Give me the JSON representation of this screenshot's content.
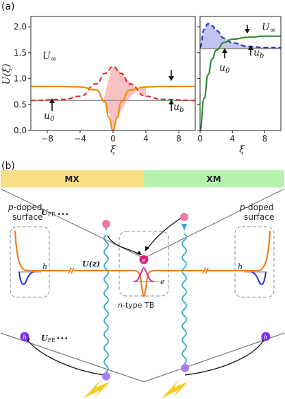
{
  "panels": {
    "a": "(a)",
    "b": "(b)"
  },
  "chart_data": [
    {
      "type": "line",
      "ylabel": "U(ξ)",
      "xlabel": "ξ",
      "xlim": [
        -10,
        10
      ],
      "ylim": [
        0,
        2.2
      ],
      "x_ticks": [
        "-8",
        "-4",
        "0",
        "4",
        "8"
      ],
      "y_ticks": [
        "0.0",
        "0.5",
        "1.0",
        "1.5",
        "2.0"
      ],
      "annotations": [
        "U∞",
        "u0",
        "ub"
      ],
      "series": [
        {
          "color": "#f08c00",
          "style": "solid",
          "x": [
            -10,
            -6,
            -4,
            -2,
            -1,
            -0.5,
            0,
            0.5,
            1,
            2,
            4,
            6,
            10
          ],
          "y": [
            0.85,
            0.85,
            0.84,
            0.78,
            0.55,
            0.25,
            0.0,
            0.25,
            0.55,
            0.78,
            0.84,
            0.85,
            0.85
          ]
        },
        {
          "color": "#e32b2b",
          "style": "dashed",
          "x": [
            -10,
            -6,
            -4,
            -2,
            -1,
            0,
            1,
            2,
            4,
            6,
            10
          ],
          "y": [
            0.58,
            0.6,
            0.66,
            0.9,
            1.1,
            1.23,
            1.1,
            0.9,
            0.66,
            0.6,
            0.58
          ]
        },
        {
          "color": "#888888",
          "style": "solid",
          "x": [
            -10,
            10
          ],
          "y": [
            0.58,
            0.58
          ]
        }
      ]
    },
    {
      "type": "line",
      "xlabel": "ξ",
      "xlim": [
        0,
        10
      ],
      "ylim": [
        0,
        2.2
      ],
      "x_ticks": [
        "0",
        "4",
        "8"
      ],
      "annotations": [
        "U∞",
        "u0",
        "ub"
      ],
      "series": [
        {
          "color": "#2e8b2e",
          "style": "solid",
          "x": [
            0,
            0.5,
            1,
            1.5,
            2,
            3,
            4,
            6,
            8,
            10
          ],
          "y": [
            0,
            0.62,
            1.08,
            1.38,
            1.55,
            1.7,
            1.76,
            1.8,
            1.82,
            1.82
          ]
        },
        {
          "color": "#2233cc",
          "style": "dashed",
          "x": [
            0,
            0.5,
            1,
            1.5,
            2,
            3,
            4,
            6,
            8,
            10
          ],
          "y": [
            1.6,
            1.95,
            2.06,
            2.02,
            1.93,
            1.78,
            1.69,
            1.62,
            1.6,
            1.6
          ]
        },
        {
          "color": "#888888",
          "style": "solid",
          "x": [
            0,
            10
          ],
          "y": [
            1.58,
            1.58
          ]
        }
      ]
    }
  ],
  "diagram": {
    "bands": {
      "left": "MX",
      "right": "XM"
    },
    "labels": {
      "ufe_top": "U",
      "ufe_sub": "FE",
      "uz": "U(z)",
      "left_surface_1": "p-doped",
      "left_surface_2": "surface",
      "right_surface_1": "p-doped",
      "right_surface_2": "surface",
      "tb": "n-type TB",
      "h": "h",
      "e": "e"
    }
  }
}
